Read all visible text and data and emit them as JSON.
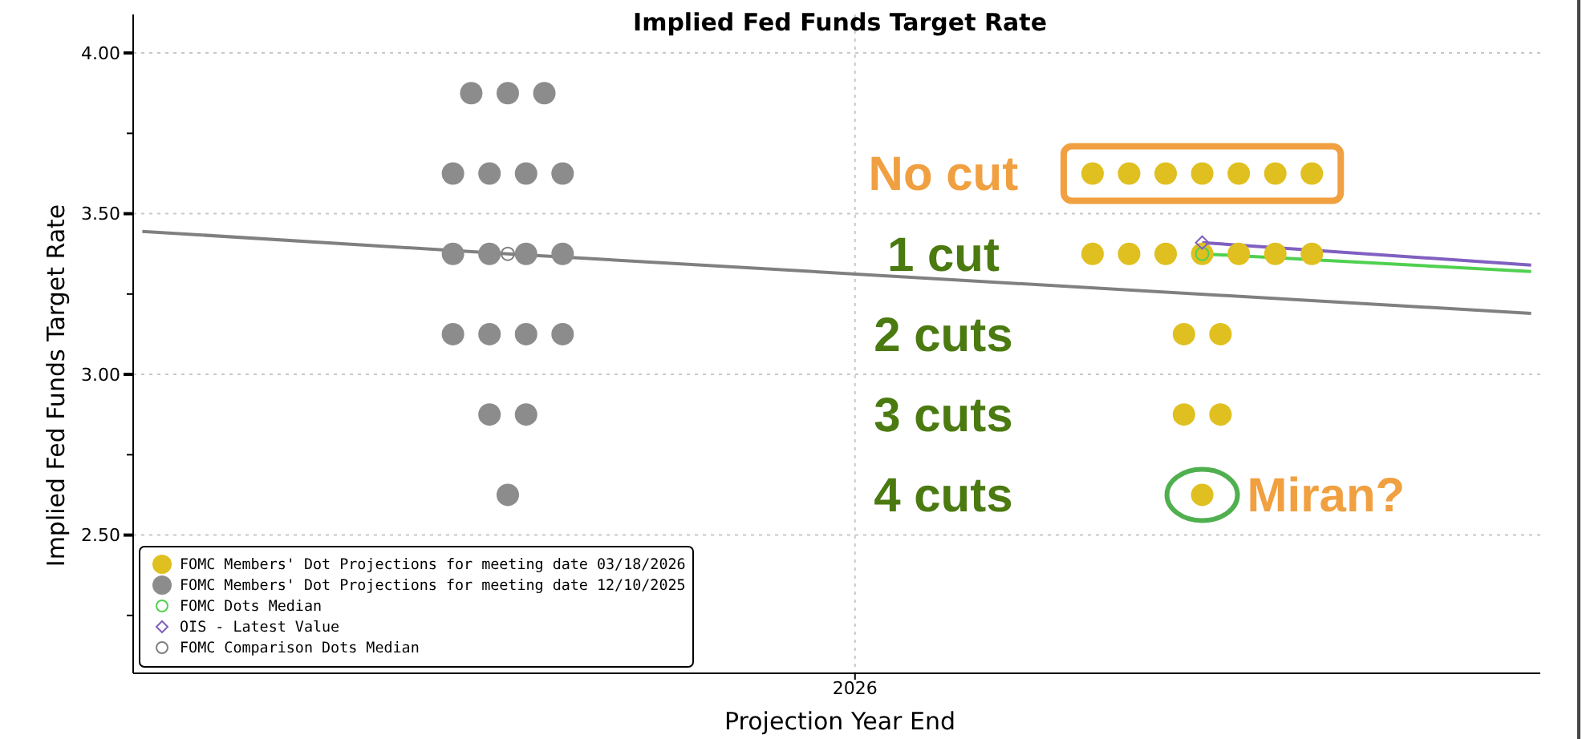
{
  "chart_data": {
    "type": "scatter",
    "title": "Implied Fed Funds Target Rate",
    "xlabel": "Projection Year End",
    "ylabel": "Implied Fed Funds Target Rate",
    "categories": [
      null,
      null,
      null,
      null,
      null,
      null,
      null,
      null,
      null,
      null,
      null,
      null,
      null,
      null,
      null,
      null,
      null,
      null,
      null,
      null,
      null,
      null,
      null,
      null,
      null,
      null,
      null,
      null,
      null,
      null,
      null,
      null,
      null,
      null,
      null,
      null,
      null,
      null,
      null,
      "2026",
      null,
      null,
      null,
      null,
      null,
      null,
      null,
      null,
      null,
      null,
      null,
      null,
      null,
      null,
      null,
      null,
      null,
      null,
      null,
      null,
      null,
      null,
      null,
      null,
      null,
      null,
      null,
      null,
      null,
      null,
      null,
      null,
      null,
      null,
      null,
      null,
      null
    ],
    "ylim": [
      2.07,
      4.12
    ],
    "yticks": [
      {
        "value": 2.25,
        "label": null
      },
      {
        "value": 2.5,
        "label": "2.50"
      },
      {
        "value": 2.75,
        "label": null
      },
      {
        "value": 3,
        "label": "3.00"
      },
      {
        "value": 3.25,
        "label": null
      },
      {
        "value": 3.5,
        "label": "3.50"
      },
      {
        "value": 3.75,
        "label": null
      },
      {
        "value": 4,
        "label": "4.00"
      }
    ],
    "grid": true,
    "legend": "bottom left",
    "marker": "circle",
    "series": [
      {
        "name": "FOMC Members' Dot Projections for meeting date 03/18/2026",
        "color": "#e0c020",
        "values": [
          null,
          null,
          null,
          null,
          null,
          null,
          null,
          null,
          null,
          null,
          null,
          null,
          null,
          null,
          null,
          null,
          null,
          null,
          null,
          null,
          null,
          null,
          null,
          null,
          null,
          null,
          null,
          null,
          null,
          null,
          null,
          null,
          null,
          null,
          null,
          null,
          null,
          null,
          null,
          null,
          null,
          null,
          null,
          null,
          null,
          null,
          null,
          null,
          null,
          null,
          null,
          null,
          3.625,
          null,
          3.625,
          null,
          3.625,
          null,
          3.625,
          null,
          3.625,
          null,
          3.625,
          null,
          3.625,
          null,
          null,
          null,
          null,
          null,
          null,
          null,
          null,
          null,
          null,
          null,
          null
        ]
      },
      {
        "color": "#e0c020",
        "values": [
          null,
          null,
          null,
          null,
          null,
          null,
          null,
          null,
          null,
          null,
          null,
          null,
          null,
          null,
          null,
          null,
          null,
          null,
          null,
          null,
          null,
          null,
          null,
          null,
          null,
          null,
          null,
          null,
          null,
          null,
          null,
          null,
          null,
          null,
          null,
          null,
          null,
          null,
          null,
          null,
          null,
          null,
          null,
          null,
          null,
          null,
          null,
          null,
          null,
          null,
          null,
          null,
          3.375,
          null,
          3.375,
          null,
          3.375,
          3.125,
          3.375,
          3.125,
          3.375,
          null,
          3.375,
          null,
          3.375,
          null,
          null,
          null,
          null,
          null,
          null,
          null,
          null,
          null,
          null,
          null,
          null
        ]
      },
      {
        "color": "#e0c020",
        "values": [
          null,
          null,
          null,
          null,
          null,
          null,
          null,
          null,
          null,
          null,
          null,
          null,
          null,
          null,
          null,
          null,
          null,
          null,
          null,
          null,
          null,
          null,
          null,
          null,
          null,
          null,
          null,
          null,
          null,
          null,
          null,
          null,
          null,
          null,
          null,
          null,
          null,
          null,
          null,
          null,
          null,
          null,
          null,
          null,
          null,
          null,
          null,
          null,
          null,
          null,
          null,
          null,
          null,
          null,
          null,
          null,
          null,
          2.875,
          2.625,
          2.875,
          null,
          null,
          null,
          null,
          null,
          null,
          null,
          null,
          null,
          null,
          null,
          null,
          null,
          null,
          null,
          null,
          null
        ]
      },
      {
        "name": "FOMC Members' Dot Projections for meeting date 12/10/2025",
        "color": "#8c8c8c",
        "values": [
          null,
          null,
          null,
          null,
          null,
          null,
          null,
          null,
          null,
          null,
          null,
          null,
          null,
          null,
          null,
          null,
          null,
          3.625,
          3.875,
          3.625,
          3.875,
          3.625,
          3.875,
          3.625,
          null,
          null,
          null,
          null,
          null,
          null,
          null,
          null,
          null,
          null,
          null,
          null,
          null,
          null,
          null,
          null,
          null,
          null,
          null,
          null,
          null,
          null,
          null,
          null,
          null,
          null,
          null,
          null,
          null,
          null,
          null,
          null,
          null,
          null,
          null,
          null,
          null,
          null,
          null,
          null,
          null,
          null,
          null,
          null,
          null,
          null,
          null,
          null,
          null,
          null,
          null,
          null,
          null
        ]
      },
      {
        "color": "#8c8c8c",
        "values": [
          null,
          null,
          null,
          null,
          null,
          null,
          null,
          null,
          null,
          null,
          null,
          null,
          null,
          null,
          null,
          null,
          null,
          3.375,
          null,
          3.375,
          2.625,
          3.375,
          null,
          3.375,
          null,
          null,
          null,
          null,
          null,
          null,
          null,
          null,
          null,
          null,
          null,
          null,
          null,
          null,
          null,
          null,
          null,
          null,
          null,
          null,
          null,
          null,
          null,
          null,
          null,
          null,
          null,
          null,
          null,
          null,
          null,
          null,
          null,
          null,
          null,
          null,
          null,
          null,
          null,
          null,
          null,
          null,
          null,
          null,
          null,
          null,
          null,
          null,
          null,
          null,
          null,
          null,
          null
        ]
      },
      {
        "color": "#8c8c8c",
        "values": [
          null,
          null,
          null,
          null,
          null,
          null,
          null,
          null,
          null,
          null,
          null,
          null,
          null,
          null,
          null,
          null,
          null,
          3.125,
          null,
          3.125,
          null,
          3.125,
          null,
          3.125,
          null,
          null,
          null,
          null,
          null,
          null,
          null,
          null,
          null,
          null,
          null,
          null,
          null,
          null,
          null,
          null,
          null,
          null,
          null,
          null,
          null,
          null,
          null,
          null,
          null,
          null,
          null,
          null,
          null,
          null,
          null,
          null,
          null,
          null,
          null,
          null,
          null,
          null,
          null,
          null,
          null,
          null,
          null,
          null,
          null,
          null,
          null,
          null,
          null,
          null,
          null,
          null,
          null
        ]
      },
      {
        "color": "#8c8c8c",
        "values": [
          null,
          null,
          null,
          null,
          null,
          null,
          null,
          null,
          null,
          null,
          null,
          null,
          null,
          null,
          null,
          null,
          null,
          null,
          null,
          2.875,
          null,
          2.875,
          null,
          null,
          null,
          null,
          null,
          null,
          null,
          null,
          null,
          null,
          null,
          null,
          null,
          null,
          null,
          null,
          null,
          null,
          null,
          null,
          null,
          null,
          null,
          null,
          null,
          null,
          null,
          null,
          null,
          null,
          null,
          null,
          null,
          null,
          null,
          null,
          null,
          null,
          null,
          null,
          null,
          null,
          null,
          null,
          null,
          null,
          null,
          null,
          null,
          null,
          null,
          null,
          null,
          null,
          null
        ]
      },
      {
        "name": "FOMC Dots Median",
        "color": "#50d050",
        "type": "line",
        "marker": "circle",
        "values": [
          null,
          null,
          null,
          null,
          null,
          null,
          null,
          null,
          null,
          null,
          null,
          null,
          null,
          null,
          null,
          null,
          null,
          null,
          null,
          null,
          null,
          null,
          null,
          null,
          null,
          null,
          null,
          null,
          null,
          null,
          null,
          null,
          null,
          null,
          null,
          null,
          null,
          null,
          null,
          null,
          null,
          null,
          null,
          null,
          null,
          null,
          null,
          null,
          null,
          null,
          null,
          null,
          null,
          null,
          null,
          null,
          null,
          null,
          3.375,
          null,
          null,
          null,
          null,
          null,
          null,
          null,
          null,
          null,
          null,
          null,
          null,
          null,
          null,
          null,
          null,
          null,
          null
        ]
      },
      {
        "name": "OIS - Latest Value",
        "color": "#8060c0",
        "type": "line",
        "marker": "diamond",
        "values": [
          null,
          null,
          null,
          null,
          null,
          null,
          null,
          null,
          null,
          null,
          null,
          null,
          null,
          null,
          null,
          null,
          null,
          null,
          null,
          null,
          null,
          null,
          null,
          null,
          null,
          null,
          null,
          null,
          null,
          null,
          null,
          null,
          null,
          null,
          null,
          null,
          null,
          null,
          null,
          null,
          null,
          null,
          null,
          null,
          null,
          null,
          null,
          null,
          null,
          null,
          null,
          null,
          null,
          null,
          null,
          null,
          null,
          null,
          3.41,
          null,
          null,
          null,
          null,
          null,
          null,
          null,
          null,
          null,
          null,
          null,
          null,
          null,
          null,
          null,
          null,
          null,
          null
        ]
      },
      {
        "name": "FOMC Comparison Dots Median",
        "color": "#808080",
        "type": "line",
        "marker": "circle",
        "values": [
          null,
          null,
          null,
          null,
          null,
          null,
          null,
          null,
          null,
          null,
          null,
          null,
          null,
          null,
          null,
          null,
          null,
          null,
          null,
          null,
          3.375,
          null,
          null,
          null,
          null,
          null,
          null,
          null,
          null,
          null,
          null,
          null,
          null,
          null,
          null,
          null,
          null,
          null,
          null,
          null,
          null,
          null,
          null,
          null,
          null,
          null,
          null,
          null,
          null,
          null,
          null,
          null,
          null,
          null,
          null,
          null,
          null,
          null,
          null,
          null,
          null,
          null,
          null,
          null,
          null,
          null,
          null,
          null,
          null,
          null,
          null,
          null,
          null,
          null,
          null,
          null,
          null
        ]
      },
      {
        "color": "#50d050",
        "type": "line",
        "marker": "none",
        "values": [
          null,
          null,
          null,
          null,
          null,
          null,
          null,
          null,
          null,
          null,
          null,
          null,
          null,
          null,
          null,
          null,
          null,
          null,
          null,
          null,
          null,
          null,
          null,
          null,
          null,
          null,
          null,
          null,
          null,
          null,
          null,
          null,
          null,
          null,
          null,
          null,
          null,
          null,
          null,
          null,
          null,
          null,
          null,
          null,
          null,
          null,
          null,
          null,
          null,
          null,
          null,
          null,
          null,
          null,
          null,
          null,
          null,
          null,
          3.375,
          null,
          null,
          null,
          null,
          null,
          null,
          null,
          null,
          null,
          null,
          null,
          null,
          null,
          null,
          null,
          null,
          null,
          3.32
        ]
      },
      {
        "color": "#8060c0",
        "type": "line",
        "marker": "none",
        "values": [
          null,
          null,
          null,
          null,
          null,
          null,
          null,
          null,
          null,
          null,
          null,
          null,
          null,
          null,
          null,
          null,
          null,
          null,
          null,
          null,
          null,
          null,
          null,
          null,
          null,
          null,
          null,
          null,
          null,
          null,
          null,
          null,
          null,
          null,
          null,
          null,
          null,
          null,
          null,
          null,
          null,
          null,
          null,
          null,
          null,
          null,
          null,
          null,
          null,
          null,
          null,
          null,
          null,
          null,
          null,
          null,
          null,
          null,
          3.41,
          null,
          null,
          null,
          null,
          null,
          null,
          null,
          null,
          null,
          null,
          null,
          null,
          null,
          null,
          null,
          null,
          null,
          3.34
        ]
      },
      {
        "color": "#808080",
        "type": "line",
        "marker": "none",
        "values": [
          3.445,
          null,
          null,
          null,
          null,
          null,
          null,
          null,
          null,
          null,
          null,
          null,
          null,
          null,
          null,
          null,
          null,
          null,
          null,
          null,
          3.375,
          null,
          null,
          null,
          null,
          null,
          null,
          null,
          null,
          null,
          null,
          null,
          null,
          null,
          null,
          null,
          null,
          null,
          null,
          null,
          null,
          null,
          null,
          null,
          null,
          null,
          null,
          null,
          null,
          null,
          null,
          null,
          null,
          null,
          null,
          null,
          null,
          null,
          null,
          null,
          null,
          null,
          null,
          null,
          null,
          null,
          null,
          null,
          null,
          null,
          null,
          null,
          null,
          null,
          null,
          null,
          3.19
        ]
      }
    ],
    "annotations": [
      "No cut",
      "1 cut",
      "2 cuts",
      "3 cuts",
      "4 cuts",
      "Miran?"
    ]
  }
}
